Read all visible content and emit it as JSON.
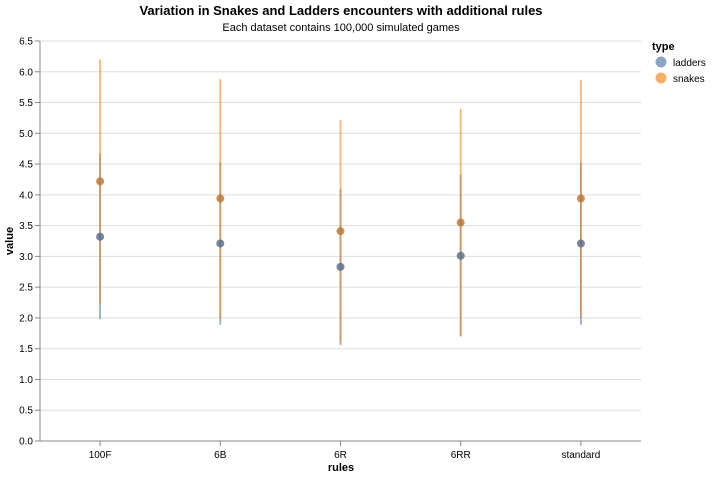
{
  "chart_data": {
    "type": "scatter",
    "title": "Variation in Snakes and Ladders encounters with additional rules",
    "subtitle": "Each dataset contains 100,000 simulated games",
    "xlabel": "rules",
    "ylabel": "value",
    "ylim": [
      0,
      6.5
    ],
    "yticks": [
      "0.0",
      "0.5",
      "1.0",
      "1.5",
      "2.0",
      "2.5",
      "3.0",
      "3.5",
      "4.0",
      "4.5",
      "5.0",
      "5.5",
      "6.0",
      "6.5"
    ],
    "categories": [
      "100F",
      "6B",
      "6R",
      "6RR",
      "standard"
    ],
    "grid": true,
    "legend": {
      "title": "type",
      "position": "right"
    },
    "series": [
      {
        "name": "ladders",
        "color": "#4c78a8",
        "mean": [
          3.32,
          3.21,
          2.83,
          3.01,
          3.21
        ],
        "low": [
          1.98,
          1.89,
          1.56,
          1.7,
          1.89
        ],
        "high": [
          4.67,
          4.53,
          4.1,
          4.33,
          4.53
        ]
      },
      {
        "name": "snakes",
        "color": "#f58518",
        "mean": [
          4.22,
          3.94,
          3.41,
          3.55,
          3.94
        ],
        "low": [
          2.23,
          1.99,
          1.6,
          1.7,
          2.01
        ],
        "high": [
          6.2,
          5.88,
          5.22,
          5.4,
          5.87
        ]
      }
    ]
  }
}
